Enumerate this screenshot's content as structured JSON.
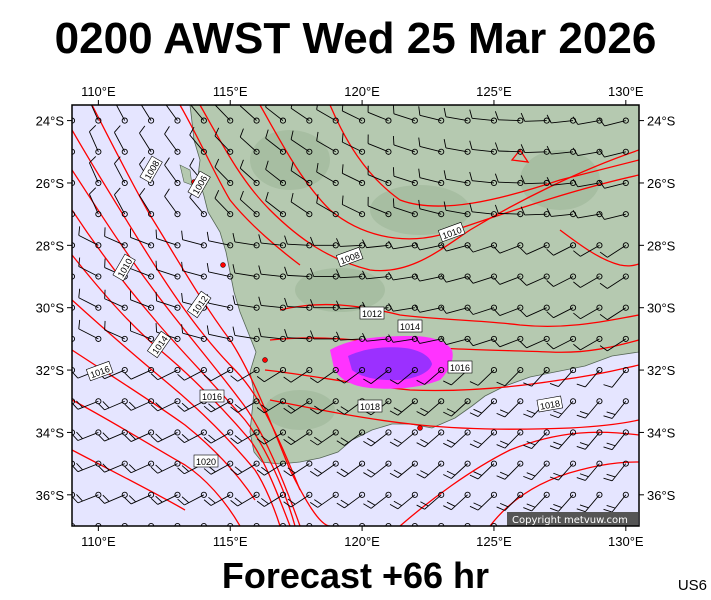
{
  "header": {
    "title": "0200 AWST Wed 25 Mar 2026"
  },
  "footer": {
    "forecast": "Forecast +66 hr",
    "code": "US6",
    "copyright": "Copyright metvuw.com"
  },
  "map": {
    "lon_labels": [
      "110°E",
      "115°E",
      "120°E",
      "125°E",
      "130°E"
    ],
    "lat_labels": [
      "24°S",
      "26°S",
      "28°S",
      "30°S",
      "32°S",
      "34°S",
      "36°S"
    ],
    "isobar_labels": [
      "1008",
      "1006",
      "1008",
      "1010",
      "1012",
      "1010",
      "1012",
      "1014",
      "1014",
      "1016",
      "1016",
      "1016",
      "1018",
      "1020",
      "1018"
    ],
    "colors": {
      "ocean": "#e5e5ff",
      "land": "#b5c9b0",
      "isobar": "#ff0000",
      "rain": "#ff00ff",
      "rain_heavy": "#8a2be2"
    }
  }
}
